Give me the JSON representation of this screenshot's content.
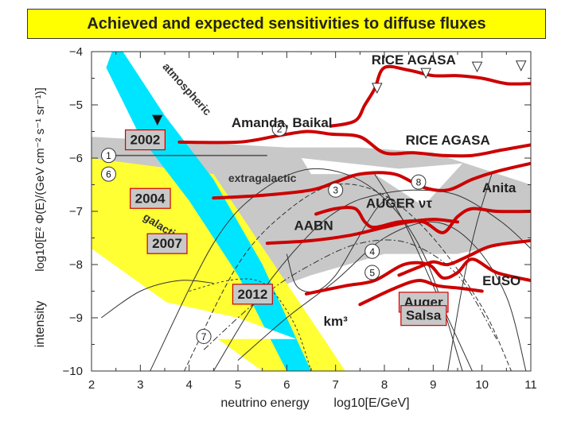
{
  "title": "Achieved and expected sensitivities to diffuse fluxes",
  "chart_data": {
    "type": "line",
    "xlabel_left": "neutrino energy",
    "xlabel_right": "log10[E/GeV]",
    "ylabel_left": "intensity",
    "ylabel_right": "log10[E² Φ(E)/(GeV cm⁻² s⁻¹ sr⁻¹)]",
    "xlim": [
      2,
      11
    ],
    "ylim": [
      -10,
      -4
    ],
    "x_ticks": [
      "2",
      "3",
      "4",
      "5",
      "6",
      "7",
      "8",
      "9",
      "10",
      "11"
    ],
    "y_ticks": [
      "−4",
      "−5",
      "−6",
      "−7",
      "−8",
      "−9",
      "−10"
    ],
    "colors": {
      "sensitivity": "#cc0000",
      "atmospheric": "#00e5ff",
      "galactic": "#ffff33",
      "extragalactic": "#c8c8c8",
      "label_box": "#c8c8c8",
      "title_bg": "#ffff00"
    },
    "bands": [
      {
        "name": "atmospheric",
        "label": "atmospheric",
        "upper": [
          [
            2.5,
            -3.8
          ],
          [
            3.5,
            -5.2
          ],
          [
            4.5,
            -6.4
          ],
          [
            5.5,
            -8.0
          ],
          [
            6.5,
            -10.0
          ]
        ],
        "lower": [
          [
            6.0,
            -10.0
          ],
          [
            5.0,
            -8.2
          ],
          [
            4.0,
            -6.8
          ],
          [
            3.0,
            -5.6
          ],
          [
            2.3,
            -4.3
          ]
        ]
      },
      {
        "name": "galactic",
        "label": "galactic",
        "upper": [
          [
            2.0,
            -6.0
          ],
          [
            4.5,
            -6.3
          ],
          [
            7.2,
            -10.0
          ]
        ],
        "lower": [
          [
            5.5,
            -10.0
          ],
          [
            2.0,
            -7.7
          ]
        ]
      },
      {
        "name": "extragalactic",
        "label": "extragalactic",
        "upper": [
          [
            2.0,
            -5.6
          ],
          [
            6.0,
            -5.8
          ],
          [
            7.5,
            -5.8
          ],
          [
            9.0,
            -5.9
          ],
          [
            11.0,
            -6.5
          ]
        ],
        "lower": [
          [
            11.0,
            -7.5
          ],
          [
            9.5,
            -7.8
          ],
          [
            8.0,
            -7.8
          ],
          [
            6.5,
            -8.2
          ],
          [
            5.0,
            -8.7
          ],
          [
            2.0,
            -7.7
          ]
        ]
      }
    ],
    "sensitivity_curves": [
      {
        "label": "RICE AGASA",
        "points": [
          [
            6.9,
            -5.4
          ],
          [
            7.4,
            -5.3
          ],
          [
            7.6,
            -5.0
          ],
          [
            7.8,
            -4.7
          ],
          [
            8.0,
            -4.3
          ],
          [
            8.5,
            -4.35
          ],
          [
            9.0,
            -4.45
          ],
          [
            9.5,
            -4.45
          ],
          [
            10.0,
            -4.5
          ],
          [
            10.5,
            -4.6
          ],
          [
            11.0,
            -4.6
          ]
        ]
      },
      {
        "label": "Amanda, Baikal / RICE AGASA",
        "points": [
          [
            5.7,
            -5.6
          ],
          [
            6.4,
            -5.5
          ],
          [
            6.9,
            -5.55
          ],
          [
            7.5,
            -5.6
          ],
          [
            8.0,
            -5.9
          ],
          [
            8.6,
            -5.9
          ],
          [
            9.2,
            -5.95
          ],
          [
            9.8,
            -5.95
          ],
          [
            10.4,
            -5.85
          ],
          [
            11.0,
            -5.75
          ]
        ]
      },
      {
        "label": "2002",
        "points": [
          [
            3.8,
            -5.7
          ],
          [
            5.0,
            -5.7
          ],
          [
            5.7,
            -5.6
          ]
        ]
      },
      {
        "label": "2004 / AUGER ντ",
        "points": [
          [
            4.5,
            -6.75
          ],
          [
            5.5,
            -6.7
          ],
          [
            6.5,
            -6.6
          ],
          [
            7.0,
            -6.45
          ],
          [
            7.5,
            -6.3
          ],
          [
            8.2,
            -6.3
          ],
          [
            8.8,
            -6.55
          ],
          [
            9.3,
            -6.6
          ],
          [
            9.8,
            -6.4
          ],
          [
            10.3,
            -6.25
          ],
          [
            11.0,
            -6.1
          ]
        ]
      },
      {
        "label": "AABN / Anita",
        "points": [
          [
            6.6,
            -7.05
          ],
          [
            7.0,
            -6.95
          ],
          [
            7.4,
            -6.95
          ],
          [
            7.6,
            -7.2
          ],
          [
            7.8,
            -7.3
          ],
          [
            8.3,
            -7.2
          ],
          [
            8.8,
            -7.2
          ],
          [
            9.2,
            -7.4
          ],
          [
            9.5,
            -7.1
          ],
          [
            9.8,
            -6.95
          ],
          [
            10.3,
            -7.0
          ],
          [
            11.0,
            -7.0
          ]
        ]
      },
      {
        "label": "2007",
        "points": [
          [
            5.6,
            -7.6
          ],
          [
            6.5,
            -7.55
          ],
          [
            7.3,
            -7.45
          ],
          [
            8.0,
            -7.3
          ],
          [
            8.5,
            -7.2
          ],
          [
            9.0,
            -7.15
          ],
          [
            9.5,
            -7.2
          ]
        ]
      },
      {
        "label": "Auger",
        "points": [
          [
            8.3,
            -8.2
          ],
          [
            8.7,
            -8.05
          ],
          [
            9.0,
            -7.95
          ],
          [
            9.3,
            -8.0
          ],
          [
            9.7,
            -7.85
          ],
          [
            10.2,
            -7.65
          ],
          [
            11.0,
            -7.55
          ]
        ]
      },
      {
        "label": "2012 / km3",
        "points": [
          [
            6.4,
            -8.55
          ],
          [
            7.2,
            -8.4
          ],
          [
            7.8,
            -8.3
          ],
          [
            8.4,
            -8.0
          ],
          [
            8.9,
            -8.0
          ],
          [
            9.2,
            -8.25
          ],
          [
            9.5,
            -8.15
          ],
          [
            9.8,
            -7.9
          ],
          [
            10.3,
            -8.15
          ],
          [
            11.0,
            -8.3
          ]
        ]
      },
      {
        "label": "Salsa / EUSO",
        "points": [
          [
            7.5,
            -8.75
          ],
          [
            8.2,
            -8.45
          ],
          [
            8.7,
            -8.3
          ],
          [
            9.1,
            -8.4
          ],
          [
            9.6,
            -8.45
          ],
          [
            10.0,
            -8.5
          ]
        ]
      }
    ],
    "box_labels": [
      {
        "text": "2002",
        "x": 3.1,
        "y": -5.65
      },
      {
        "text": "2004",
        "x": 3.2,
        "y": -6.75
      },
      {
        "text": "2007",
        "x": 3.55,
        "y": -7.6
      },
      {
        "text": "2012",
        "x": 5.3,
        "y": -8.55
      },
      {
        "text": "Auger",
        "x": 8.8,
        "y": -8.7
      },
      {
        "text": "Salsa",
        "x": 8.8,
        "y": -8.95
      }
    ],
    "text_labels": [
      {
        "text": "RICE   AGASA",
        "x": 8.6,
        "y": -4.15
      },
      {
        "text": "Amanda,  Baikal",
        "x": 5.9,
        "y": -5.33
      },
      {
        "text": "RICE  AGASA",
        "x": 9.3,
        "y": -5.66
      },
      {
        "text": "Anita",
        "x": 10.35,
        "y": -6.55
      },
      {
        "text": "AUGER ντ",
        "x": 8.3,
        "y": -6.84
      },
      {
        "text": "AABN",
        "x": 6.55,
        "y": -7.26
      },
      {
        "text": "EUSO",
        "x": 10.4,
        "y": -8.3
      },
      {
        "text": "km³",
        "x": 7.0,
        "y": -9.06
      }
    ],
    "markers": [
      {
        "n": "1",
        "x": 2.35,
        "y": -5.95
      },
      {
        "n": "2",
        "x": 5.85,
        "y": -5.45
      },
      {
        "n": "3",
        "x": 7.0,
        "y": -6.6
      },
      {
        "n": "4",
        "x": 7.75,
        "y": -7.75
      },
      {
        "n": "5",
        "x": 7.75,
        "y": -8.15
      },
      {
        "n": "6",
        "x": 2.35,
        "y": -6.3
      },
      {
        "n": "7",
        "x": 4.3,
        "y": -9.35
      },
      {
        "n": "8",
        "x": 8.7,
        "y": -6.45
      }
    ],
    "arrows": [
      {
        "x": 3.35,
        "y": -5.3,
        "filled": true
      },
      {
        "x": 7.85,
        "y": -4.7,
        "filled": false
      },
      {
        "x": 8.85,
        "y": -4.42,
        "filled": false
      },
      {
        "x": 9.9,
        "y": -4.3,
        "filled": false
      },
      {
        "x": 10.8,
        "y": -4.28,
        "filled": false
      }
    ]
  }
}
